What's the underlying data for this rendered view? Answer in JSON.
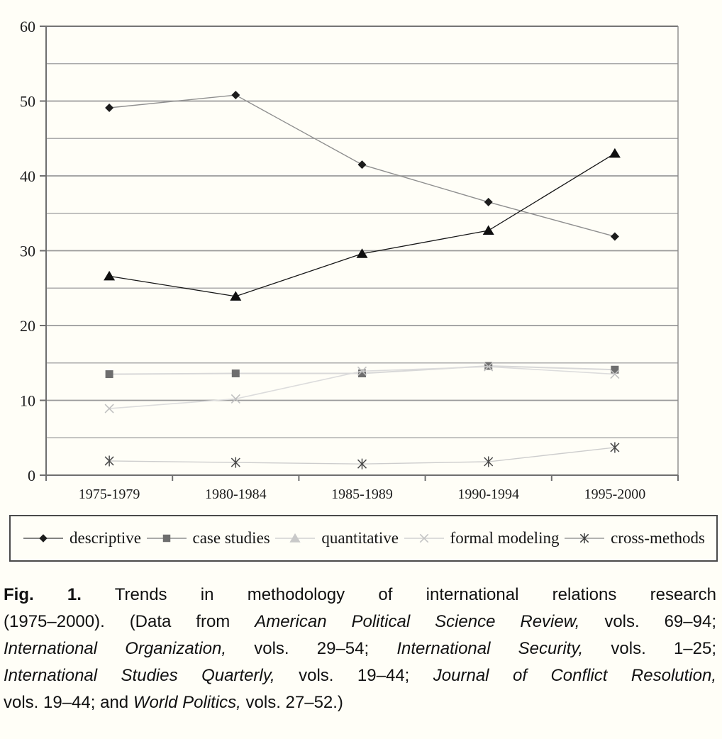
{
  "chart_data": {
    "type": "line",
    "title": "",
    "xlabel": "",
    "ylabel": "",
    "categories": [
      "1975-1979",
      "1980-1984",
      "1985-1989",
      "1990-1994",
      "1995-2000"
    ],
    "series": [
      {
        "name": "descriptive",
        "marker": "diamond",
        "values": [
          49.1,
          50.8,
          41.5,
          36.5,
          31.9
        ],
        "line_color": "#8f8f8f",
        "marker_color": "#1c1c1c",
        "line_width": 1.4
      },
      {
        "name": "case studies",
        "marker": "square",
        "values": [
          13.5,
          13.6,
          13.6,
          14.6,
          14.1
        ],
        "line_color": "#d8d8d8",
        "marker_color": "#6e6e6e",
        "line_width": 2
      },
      {
        "name": "quantitative",
        "marker": "triangle",
        "values": [
          26.6,
          23.9,
          29.6,
          32.7,
          43.0
        ],
        "line_color": "#161616",
        "marker_color": "#0f0f0f",
        "line_width": 1.3
      },
      {
        "name": "formal modeling",
        "marker": "x",
        "values": [
          8.9,
          10.2,
          13.9,
          14.5,
          13.5
        ],
        "line_color": "#dcdcdc",
        "marker_color": "#c0c0c0",
        "line_width": 1.6
      },
      {
        "name": "cross-methods",
        "marker": "asterisk",
        "values": [
          1.9,
          1.7,
          1.5,
          1.8,
          3.7
        ],
        "line_color": "#cdcdcd",
        "marker_color": "#4a4a4a",
        "line_width": 1.4
      }
    ],
    "ylim": [
      0,
      60
    ],
    "y_major_ticks": [
      0,
      10,
      20,
      30,
      40,
      50,
      60
    ],
    "y_minor_step": 5,
    "grid": "horizontal-only",
    "legend_position": "bottom-boxed"
  },
  "legend": {
    "items": [
      {
        "label": "descriptive",
        "marker": "diamond",
        "marker_color": "#1c1c1c",
        "line_color": "#5a5a5a"
      },
      {
        "label": "case studies",
        "marker": "square",
        "marker_color": "#6e6e6e",
        "line_color": "#8f8f8f"
      },
      {
        "label": "quantitative",
        "marker": "triangle",
        "marker_color": "#c9c9c9",
        "line_color": "#d2d2d2"
      },
      {
        "label": "formal modeling",
        "marker": "x",
        "marker_color": "#c4c4c4",
        "line_color": "#d2d2d2"
      },
      {
        "label": "cross-methods",
        "marker": "asterisk",
        "marker_color": "#3f3f3f",
        "line_color": "#9a9a9a"
      }
    ]
  },
  "caption": {
    "lines": [
      [
        {
          "t": "Fig. 1.",
          "b": true
        },
        {
          "t": "  Trends in methodology of international relations research"
        }
      ],
      [
        {
          "t": "(1975–2000). (Data from "
        },
        {
          "t": "American Political Science Review,",
          "i": true
        },
        {
          "t": " vols. 69–94;"
        }
      ],
      [
        {
          "t": "International Organization,",
          "i": true
        },
        {
          "t": " vols. 29–54; "
        },
        {
          "t": "International Security,",
          "i": true
        },
        {
          "t": " vols. 1–25;"
        }
      ],
      [
        {
          "t": "International Studies Quarterly,",
          "i": true
        },
        {
          "t": " vols. 19–44; "
        },
        {
          "t": "Journal of Conflict Resolution,",
          "i": true
        }
      ],
      [
        {
          "t": "vols. 19–44; and "
        },
        {
          "t": "World Politics,",
          "i": true
        },
        {
          "t": " vols. 27–52.)"
        }
      ]
    ]
  },
  "colors": {
    "background": "#fffef7",
    "axis": "#6f6f6f",
    "gridline_major": "#9a9a9a",
    "gridline_minor": "#ababab",
    "plot_top_border": "#757575",
    "plot_right_border": "#8a8a8a",
    "text": "#1c1c1c"
  }
}
